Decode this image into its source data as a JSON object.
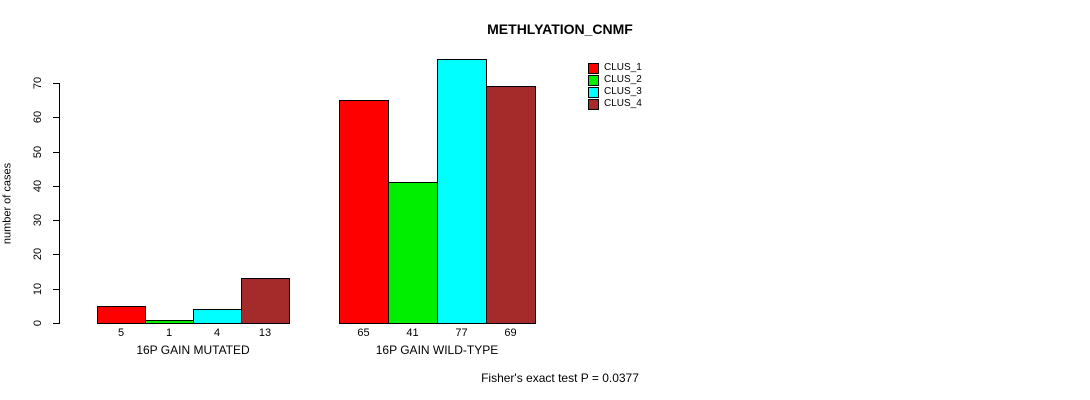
{
  "title": "METHLYATION_CNMF",
  "footer_note": "Fisher's exact test P = 0.0377",
  "chart_data": {
    "type": "bar",
    "title": "METHLYATION_CNMF",
    "xlabel": "",
    "ylabel": "number of cases",
    "ylim": [
      0,
      77
    ],
    "yticks": [
      0,
      10,
      20,
      30,
      40,
      50,
      60,
      70
    ],
    "grid": false,
    "legend_position": "top-right",
    "categories": [
      "16P GAIN MUTATED",
      "16P GAIN WILD-TYPE"
    ],
    "series": [
      {
        "name": "CLUS_1",
        "color": "#FF0000",
        "values": [
          5,
          65
        ]
      },
      {
        "name": "CLUS_2",
        "color": "#00EE00",
        "values": [
          1,
          41
        ]
      },
      {
        "name": "CLUS_3",
        "color": "#00FFFF",
        "values": [
          4,
          77
        ]
      },
      {
        "name": "CLUS_4",
        "color": "#A52A2A",
        "values": [
          13,
          69
        ]
      }
    ],
    "bar_value_labels": {
      "16P GAIN MUTATED": [
        5,
        1,
        4,
        13
      ],
      "16P GAIN WILD-TYPE": [
        65,
        41,
        77,
        69
      ]
    },
    "annotation": "Fisher's exact test P = 0.0377"
  }
}
